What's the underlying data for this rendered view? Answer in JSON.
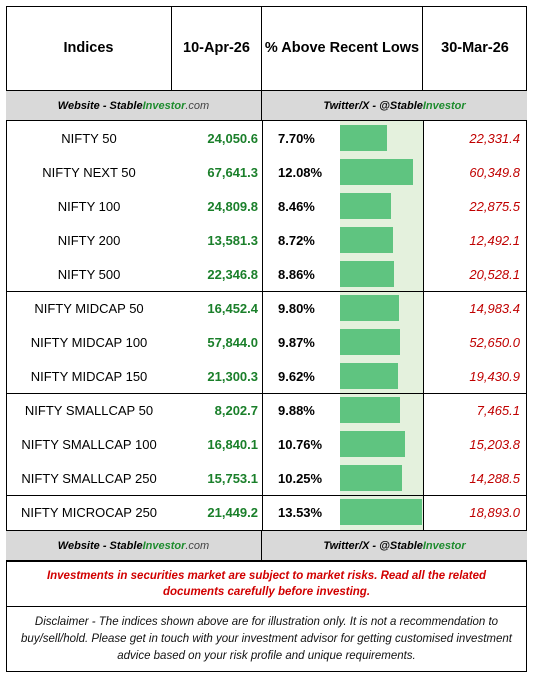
{
  "header": {
    "col_indices": "Indices",
    "col_date_current": "10-Apr-26",
    "col_pct": "% Above Recent Lows",
    "col_date_prior": "30-Mar-26"
  },
  "band_top": {
    "left_prefix": "Website - Stable ",
    "left_brand": "Investor",
    "left_suffix": ".com",
    "right_prefix": "Twitter/X - @Stable",
    "right_brand": "Investor"
  },
  "band_bottom": {
    "left_prefix": "Website - Stable ",
    "left_brand": "Investor",
    "left_suffix": ".com",
    "right_prefix": "Twitter/X - @Stable ",
    "right_brand": "Investor"
  },
  "rows": [
    {
      "name": "NIFTY 50",
      "current": "24,050.6",
      "pct": "7.70%",
      "pct_value": 7.7,
      "prior": "22,331.4"
    },
    {
      "name": "NIFTY NEXT 50",
      "current": "67,641.3",
      "pct": "12.08%",
      "pct_value": 12.08,
      "prior": "60,349.8"
    },
    {
      "name": "NIFTY 100",
      "current": "24,809.8",
      "pct": "8.46%",
      "pct_value": 8.46,
      "prior": "22,875.5"
    },
    {
      "name": "NIFTY 200",
      "current": "13,581.3",
      "pct": "8.72%",
      "pct_value": 8.72,
      "prior": "12,492.1"
    },
    {
      "name": "NIFTY 500",
      "current": "22,346.8",
      "pct": "8.86%",
      "pct_value": 8.86,
      "prior": "20,528.1"
    },
    {
      "name": "NIFTY MIDCAP 50",
      "current": "16,452.4",
      "pct": "9.80%",
      "pct_value": 9.8,
      "prior": "14,983.4"
    },
    {
      "name": "NIFTY MIDCAP 100",
      "current": "57,844.0",
      "pct": "9.87%",
      "pct_value": 9.87,
      "prior": "52,650.0"
    },
    {
      "name": "NIFTY MIDCAP 150",
      "current": "21,300.3",
      "pct": "9.62%",
      "pct_value": 9.62,
      "prior": "19,430.9"
    },
    {
      "name": "NIFTY SMALLCAP 50",
      "current": "8,202.7",
      "pct": "9.88%",
      "pct_value": 9.88,
      "prior": "7,465.1"
    },
    {
      "name": "NIFTY SMALLCAP 100",
      "current": "16,840.1",
      "pct": "10.76%",
      "pct_value": 10.76,
      "prior": "15,203.8"
    },
    {
      "name": "NIFTY SMALLCAP 250",
      "current": "15,753.1",
      "pct": "10.25%",
      "pct_value": 10.25,
      "prior": "14,288.5"
    },
    {
      "name": "NIFTY MICROCAP 250",
      "current": "21,449.2",
      "pct": "13.53%",
      "pct_value": 13.53,
      "prior": "18,893.0"
    }
  ],
  "colors": {
    "bar": "#5fc480",
    "bar_column_bg": "#e4f1dd",
    "current_value": "#1a7f2a",
    "prior_value": "#c00000",
    "band_bg": "#d9d9d9",
    "risk_text": "#d10000"
  },
  "risk_notice": "Investments in securities market are subject to market risks. Read all the related documents carefully before investing.",
  "disclaimer": "Disclaimer - The indices shown above are for illustration only. It is not a recommendation to buy/sell/hold. Please get in touch with your investment advisor for getting customised investment advice based on your risk profile and unique requirements."
}
